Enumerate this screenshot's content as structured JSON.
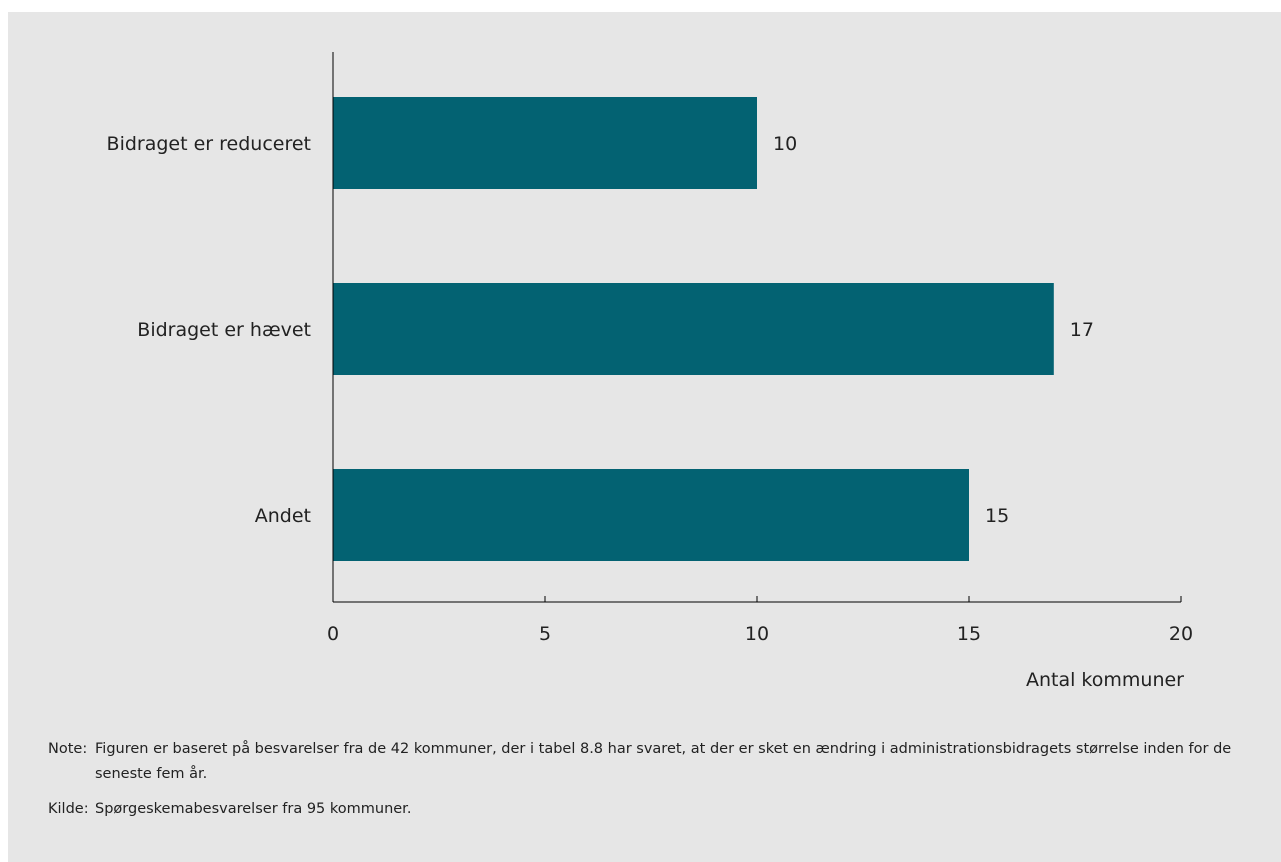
{
  "chart_data": {
    "type": "bar",
    "orientation": "horizontal",
    "categories": [
      "Bidraget er reduceret",
      "Bidraget er hævet",
      "Andet"
    ],
    "values": [
      10,
      17,
      15
    ],
    "data_labels": [
      "10",
      "17",
      "15"
    ],
    "xlabel": "Antal kommuner",
    "ylabel": "",
    "xlim": [
      0,
      20
    ],
    "xticks": [
      0,
      5,
      10,
      15,
      20
    ],
    "grid": false,
    "bar_color": "#036272"
  },
  "notes": {
    "note_label": "Note:",
    "note_text": "Figuren er baseret på besvarelser fra de 42 kommuner, der i tabel 8.8 har svaret, at der er sket en ændring i administrationsbidragets størrelse inden for de seneste fem år.",
    "source_label": "Kilde:",
    "source_text": "Spørgeskemabesvarelser fra 95 kommuner."
  },
  "colors": {
    "background": "#e6e6e6",
    "bar": "#036272",
    "text": "#222222"
  }
}
